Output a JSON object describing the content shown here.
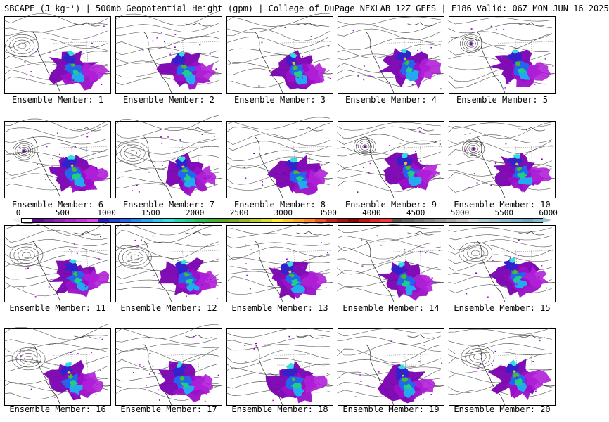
{
  "title": "SBCAPE (J kg⁻¹) | 500mb Geopotential Height (gpm) | College of DuPage NEXLAB 12Z GEFS | F186 Valid: 06Z MON JUN 16 2025",
  "members": [
    {
      "caption": "Ensemble Member: 1",
      "low": "nw-broad"
    },
    {
      "caption": "Ensemble Member: 2",
      "low": "none"
    },
    {
      "caption": "Ensemble Member: 3",
      "low": "none"
    },
    {
      "caption": "Ensemble Member: 4",
      "low": "none"
    },
    {
      "caption": "Ensemble Member: 5",
      "low": "tight"
    },
    {
      "caption": "Ensemble Member: 6",
      "low": "tight"
    },
    {
      "caption": "Ensemble Member: 7",
      "low": "nw-broad"
    },
    {
      "caption": "Ensemble Member: 8",
      "low": "none"
    },
    {
      "caption": "Ensemble Member: 9",
      "low": "tight"
    },
    {
      "caption": "Ensemble Member: 10",
      "low": "tight"
    },
    {
      "caption": "Ensemble Member: 11",
      "low": "nw-broad"
    },
    {
      "caption": "Ensemble Member: 12",
      "low": "nw-broad"
    },
    {
      "caption": "Ensemble Member: 13",
      "low": "none"
    },
    {
      "caption": "Ensemble Member: 14",
      "low": "none"
    },
    {
      "caption": "Ensemble Member: 15",
      "low": "nw-broad"
    },
    {
      "caption": "Ensemble Member: 16",
      "low": "nw-broad"
    },
    {
      "caption": "Ensemble Member: 17",
      "low": "none"
    },
    {
      "caption": "Ensemble Member: 18",
      "low": "none"
    },
    {
      "caption": "Ensemble Member: 19",
      "low": "none"
    },
    {
      "caption": "Ensemble Member: 20",
      "low": "nw-broad"
    }
  ],
  "colorbar": {
    "ticks": [
      "0",
      "500",
      "1000",
      "1500",
      "2000",
      "2500",
      "3000",
      "3500",
      "4000",
      "4500",
      "5000",
      "5500",
      "6000"
    ],
    "colors": [
      "#ffffff",
      "#5a0d8c",
      "#7a1aa6",
      "#9a1fbe",
      "#b428d2",
      "#cc33e0",
      "#dd44ee",
      "#1f22c8",
      "#2244dd",
      "#2266ee",
      "#2288f5",
      "#22aaf8",
      "#22ccf2",
      "#33e0e0",
      "#22d6b4",
      "#22cc88",
      "#22c055",
      "#33b833",
      "#55aa22",
      "#77aa22",
      "#99b422",
      "#bbcc22",
      "#dddd22",
      "#ffee22",
      "#ffcc22",
      "#ffaa22",
      "#ff8822",
      "#ee5522",
      "#cc2222",
      "#aa1111",
      "#880808",
      "#cc1111",
      "#ee2222",
      "#ff3333",
      "#555555",
      "#666666",
      "#777777",
      "#888888",
      "#999999",
      "#aaaaaa",
      "#bbbbbb",
      "#c4d4dc",
      "#aecbd8",
      "#9cc4d4",
      "#8abccf",
      "#7ab4c8",
      "#6aacc2",
      "#88bbcc"
    ],
    "cape_palette": [
      "#7a00b0",
      "#9b10c8",
      "#b020d8",
      "#3322cc",
      "#2266ee",
      "#22aaf0",
      "#33dddd",
      "#22cc88",
      "#44bb33",
      "#ddcc22"
    ]
  }
}
